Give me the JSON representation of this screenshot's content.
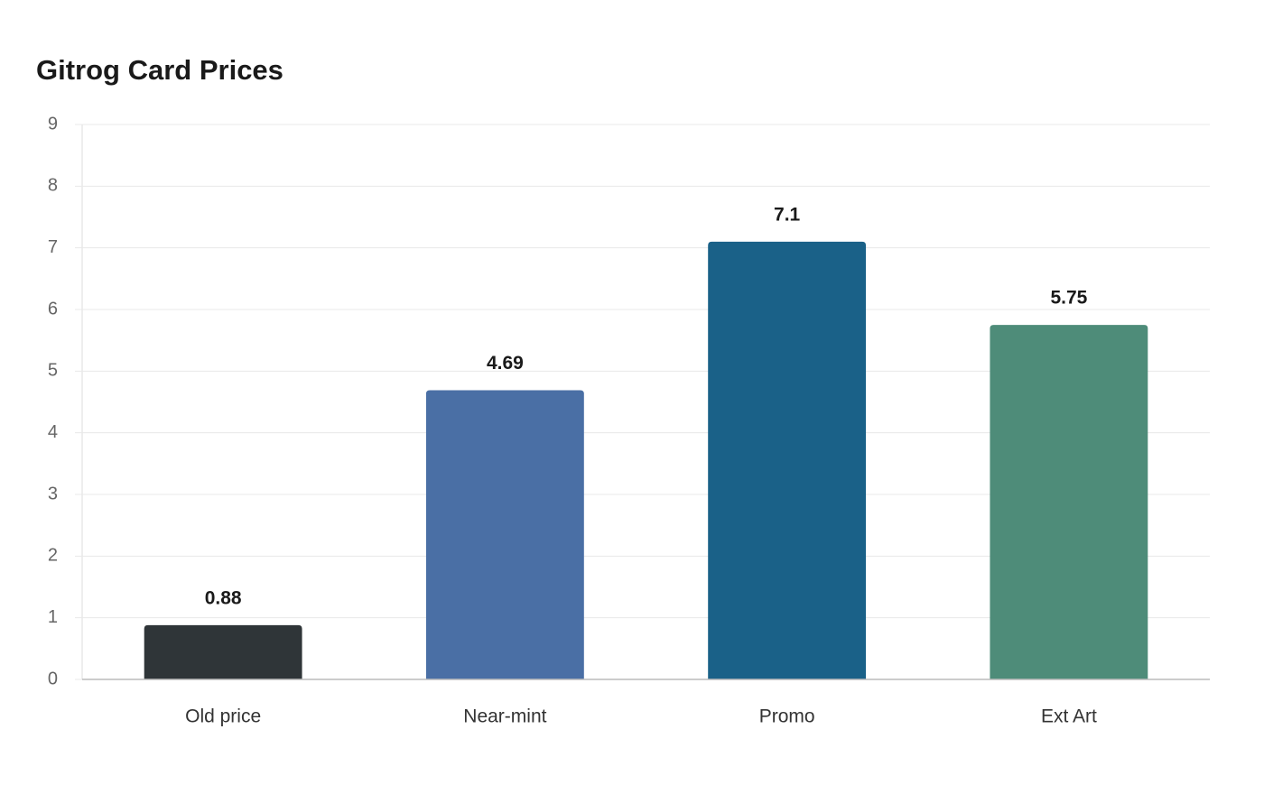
{
  "chart_data": {
    "type": "bar",
    "title": "Gitrog Card Prices",
    "categories": [
      "Old price",
      "Near-mint",
      "Promo",
      "Ext Art"
    ],
    "values": [
      0.88,
      4.69,
      7.1,
      5.75
    ],
    "colors": [
      "#2f3538",
      "#4a6fa5",
      "#1a6188",
      "#4e8c79"
    ],
    "ylim": [
      0,
      9
    ],
    "yticks": [
      0,
      1,
      2,
      3,
      4,
      5,
      6,
      7,
      8,
      9
    ],
    "grid": true
  }
}
